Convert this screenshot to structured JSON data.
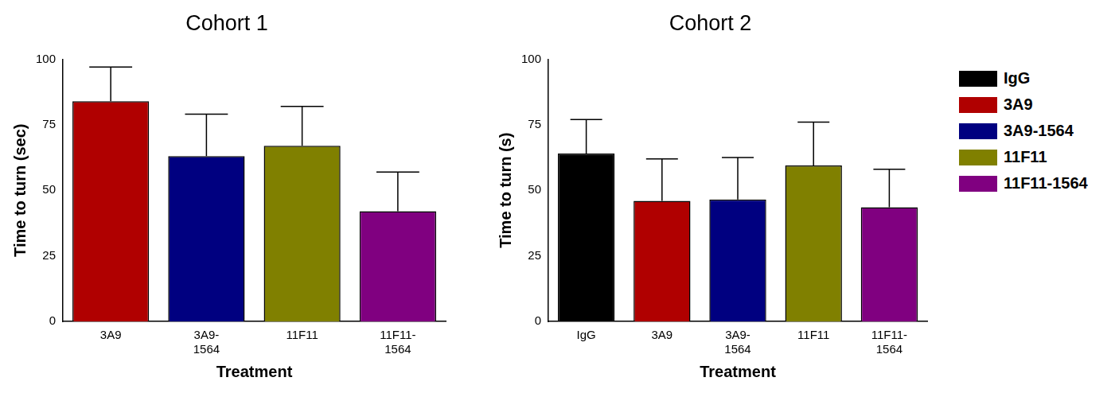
{
  "chart_data": [
    {
      "type": "bar",
      "title": "Cohort 1",
      "x_label": "Treatment",
      "y_label": "Time to turn (sec)",
      "categories": [
        "3A9",
        "3A9-1564",
        "11F11",
        "11F11-1564"
      ],
      "values": [
        84,
        63,
        67,
        42
      ],
      "errors": [
        13,
        16,
        15,
        15
      ],
      "colors": [
        "#b00000",
        "#000080",
        "#808000",
        "#800080"
      ],
      "ylim": [
        0,
        100
      ],
      "yticks": [
        0,
        25,
        50,
        75,
        100
      ],
      "grid": false
    },
    {
      "type": "bar",
      "title": "Cohort 2",
      "x_label": "Treatment",
      "y_label": "Time to turn (s)",
      "categories": [
        "IgG",
        "3A9",
        "3A9-1564",
        "11F11",
        "11F11-1564"
      ],
      "values": [
        64,
        46,
        46.5,
        59.5,
        43.5
      ],
      "errors": [
        13,
        16,
        16,
        16.5,
        14.5
      ],
      "colors": [
        "#000000",
        "#b00000",
        "#000080",
        "#808000",
        "#800080"
      ],
      "ylim": [
        0,
        100
      ],
      "yticks": [
        0,
        25,
        50,
        75,
        100
      ],
      "grid": false,
      "legend": "right"
    }
  ]
}
